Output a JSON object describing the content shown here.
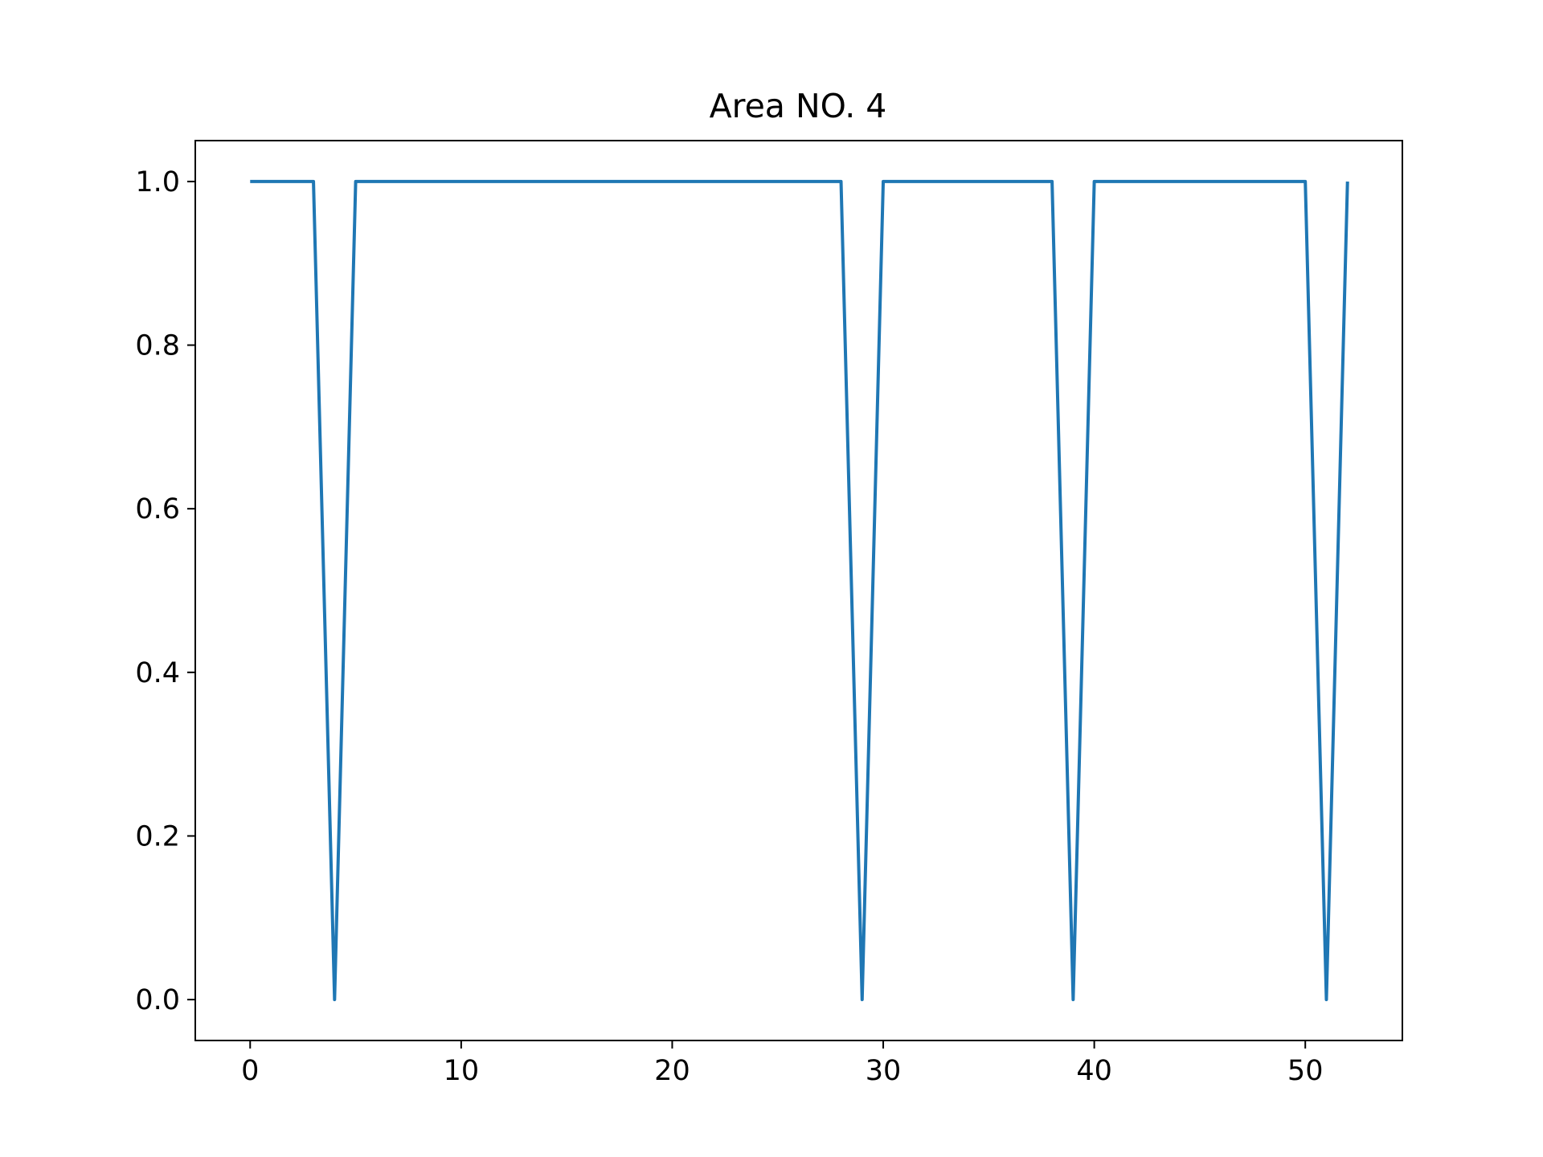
{
  "chart_data": {
    "type": "line",
    "title": "Area NO. 4",
    "xlabel": "",
    "ylabel": "",
    "xlim": [
      -2.6,
      54.6
    ],
    "ylim": [
      -0.05,
      1.05
    ],
    "xticks": [
      0,
      10,
      20,
      30,
      40,
      50
    ],
    "yticks": [
      0.0,
      0.2,
      0.4,
      0.6,
      0.8,
      1.0
    ],
    "xtick_labels": [
      "0",
      "10",
      "20",
      "30",
      "40",
      "50"
    ],
    "ytick_labels": [
      "0.0",
      "0.2",
      "0.4",
      "0.6",
      "0.8",
      "1.0"
    ],
    "grid": false,
    "series": [
      {
        "color": "#1f77b4",
        "x": [
          0,
          1,
          2,
          3,
          4,
          5,
          6,
          7,
          8,
          9,
          10,
          11,
          12,
          13,
          14,
          15,
          16,
          17,
          18,
          19,
          20,
          21,
          22,
          23,
          24,
          25,
          26,
          27,
          28,
          29,
          30,
          31,
          32,
          33,
          34,
          35,
          36,
          37,
          38,
          39,
          40,
          41,
          42,
          43,
          44,
          45,
          46,
          47,
          48,
          49,
          50,
          51,
          52
        ],
        "values": [
          1,
          1,
          1,
          1,
          0,
          1,
          1,
          1,
          1,
          1,
          1,
          1,
          1,
          1,
          1,
          1,
          1,
          1,
          1,
          1,
          1,
          1,
          1,
          1,
          1,
          1,
          1,
          1,
          1,
          0,
          1,
          1,
          1,
          1,
          1,
          1,
          1,
          1,
          1,
          0,
          1,
          1,
          1,
          1,
          1,
          1,
          1,
          1,
          1,
          1,
          1,
          0,
          1
        ]
      }
    ]
  }
}
